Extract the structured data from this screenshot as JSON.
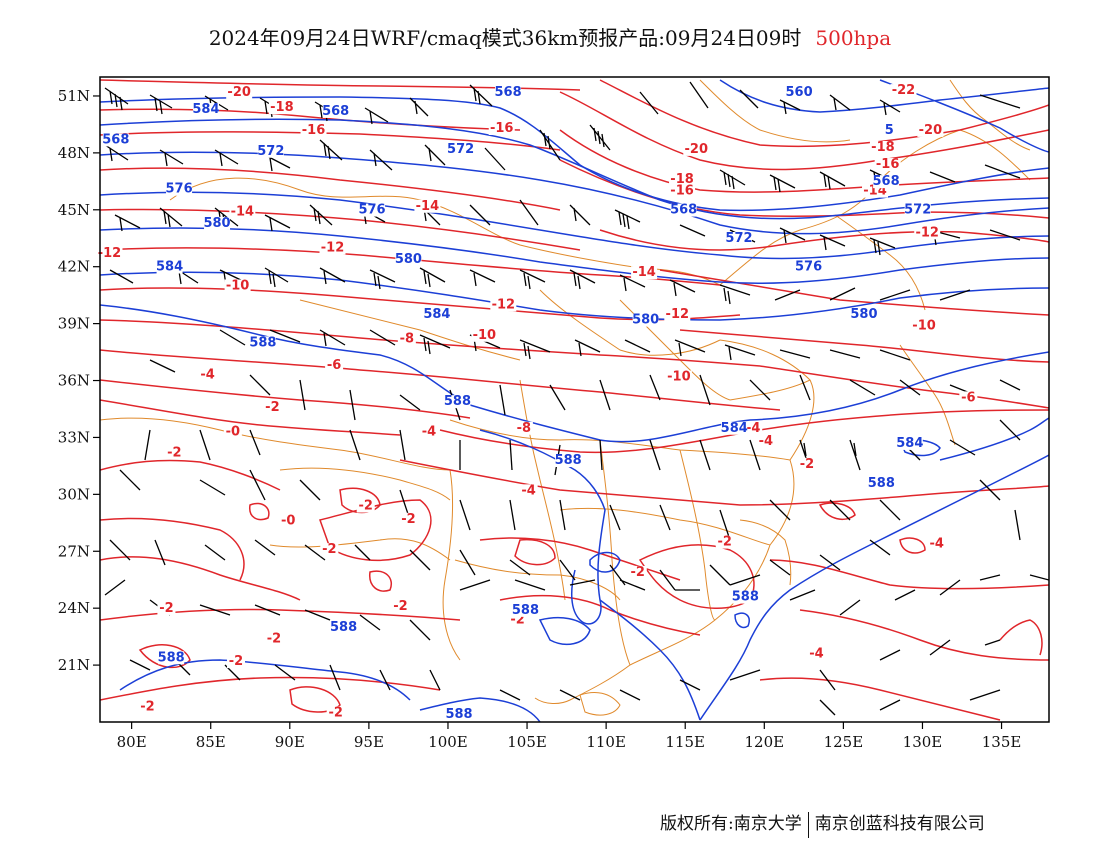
{
  "title": {
    "main": "2024年09月24日WRF/cmaq模式36km预报产品:09月24日09时",
    "level": "500hpa"
  },
  "credit": {
    "left": "版权所有:南京大学",
    "right": "南京创蓝科技有限公司"
  },
  "colors": {
    "temperature": "#e0262b",
    "geopotential": "#1c3fd6",
    "borders": "#e08a2c",
    "wind_barbs": "#000000"
  },
  "map": {
    "lon_range": [
      78,
      138
    ],
    "lat_range": [
      18,
      52
    ],
    "lon_ticks": [
      "80E",
      "85E",
      "90E",
      "95E",
      "100E",
      "105E",
      "110E",
      "115E",
      "120E",
      "125E",
      "130E",
      "135E"
    ],
    "lat_ticks": [
      "51N",
      "48N",
      "45N",
      "42N",
      "39N",
      "36N",
      "33N",
      "30N",
      "27N",
      "24N",
      "21N"
    ],
    "temperature_labels": [
      {
        "text": "-20",
        "lon": 86.8,
        "lat": 51.0
      },
      {
        "text": "-18",
        "lon": 89.5,
        "lon2": 0,
        "lat": 50.2
      },
      {
        "text": "-16",
        "lon": 91.5,
        "lat": 49.0
      },
      {
        "text": "-16",
        "lon": 103.4,
        "lat": 49.1
      },
      {
        "text": "-20",
        "lon": 115.7,
        "lat": 48.0
      },
      {
        "text": "-18",
        "lon": 114.8,
        "lat": 46.4
      },
      {
        "text": "-16",
        "lon": 114.8,
        "lat": 45.8
      },
      {
        "text": "-22",
        "lon": 128.8,
        "lat": 51.1
      },
      {
        "text": "-20",
        "lon": 130.5,
        "lat": 49.0
      },
      {
        "text": "-18",
        "lon": 127.5,
        "lat": 48.1
      },
      {
        "text": "-16",
        "lon": 127.8,
        "lat": 47.2
      },
      {
        "text": "-14",
        "lon": 127.0,
        "lat": 45.8
      },
      {
        "text": "-12",
        "lon": 130.3,
        "lat": 43.6
      },
      {
        "text": "-14",
        "lon": 87.0,
        "lat": 44.7
      },
      {
        "text": "-14",
        "lon": 98.7,
        "lat": 45.0
      },
      {
        "text": "-12",
        "lon": 78.6,
        "lat": 42.5
      },
      {
        "text": "-12",
        "lon": 92.7,
        "lat": 42.8
      },
      {
        "text": "-10",
        "lon": 86.7,
        "lat": 40.8
      },
      {
        "text": "-14",
        "lon": 112.4,
        "lat": 41.5
      },
      {
        "text": "-12",
        "lon": 103.5,
        "lat": 39.8
      },
      {
        "text": "-12",
        "lon": 114.5,
        "lat": 39.3
      },
      {
        "text": "-10",
        "lon": 102.3,
        "lat": 38.2
      },
      {
        "text": "-8",
        "lon": 97.4,
        "lat": 38.0
      },
      {
        "text": "-10",
        "lon": 130.1,
        "lat": 38.7
      },
      {
        "text": "-6",
        "lon": 92.8,
        "lat": 36.6
      },
      {
        "text": "-4",
        "lon": 84.8,
        "lat": 36.1
      },
      {
        "text": "-10",
        "lon": 114.6,
        "lat": 36.0
      },
      {
        "text": "-6",
        "lon": 132.9,
        "lat": 34.9
      },
      {
        "text": "-2",
        "lon": 88.9,
        "lat": 34.4
      },
      {
        "text": "-0",
        "lon": 86.4,
        "lat": 33.1
      },
      {
        "text": "-4",
        "lon": 98.8,
        "lat": 33.1
      },
      {
        "text": "-8",
        "lon": 104.8,
        "lat": 33.3
      },
      {
        "text": "-4",
        "lon": 119.3,
        "lat": 33.3
      },
      {
        "text": "-4",
        "lon": 120.1,
        "lat": 32.6
      },
      {
        "text": "-2",
        "lon": 82.7,
        "lat": 32.0
      },
      {
        "text": "-2",
        "lon": 122.7,
        "lat": 31.4
      },
      {
        "text": "-4",
        "lon": 105.1,
        "lat": 30.0
      },
      {
        "text": "-2",
        "lon": 94.8,
        "lat": 29.2
      },
      {
        "text": "-2",
        "lon": 97.5,
        "lat": 28.5
      },
      {
        "text": "-0",
        "lon": 89.9,
        "lat": 28.4
      },
      {
        "text": "-2",
        "lon": 117.5,
        "lat": 27.3
      },
      {
        "text": "-2",
        "lon": 92.5,
        "lat": 26.9
      },
      {
        "text": "-4",
        "lon": 130.9,
        "lat": 27.2
      },
      {
        "text": "-2",
        "lon": 112.0,
        "lat": 25.7
      },
      {
        "text": "-2",
        "lon": 97.0,
        "lat": 23.9
      },
      {
        "text": "-2",
        "lon": 82.2,
        "lat": 23.8
      },
      {
        "text": "-2",
        "lon": 89.0,
        "lat": 22.2
      },
      {
        "text": "-2",
        "lon": 104.4,
        "lat": 23.2
      },
      {
        "text": "-2",
        "lon": 86.6,
        "lat": 21.0
      },
      {
        "text": "-4",
        "lon": 123.3,
        "lat": 21.4
      },
      {
        "text": "-2",
        "lon": 81.0,
        "lat": 18.6
      },
      {
        "text": "-2",
        "lon": 92.9,
        "lat": 18.3
      }
    ],
    "geopotential_labels": [
      {
        "text": "568",
        "lon": 103.8,
        "lat": 51.0
      },
      {
        "text": "584",
        "lon": 84.7,
        "lat": 50.1
      },
      {
        "text": "568",
        "lon": 92.9,
        "lat": 50.0
      },
      {
        "text": "568",
        "lon": 79.0,
        "lat": 48.5
      },
      {
        "text": "572",
        "lon": 88.8,
        "lat": 47.9
      },
      {
        "text": "572",
        "lon": 100.8,
        "lat": 48.0
      },
      {
        "text": "560",
        "lon": 122.2,
        "lat": 51.0
      },
      {
        "text": "5",
        "lon": 127.9,
        "lat": 49.0
      },
      {
        "text": "568",
        "lon": 127.7,
        "lat": 46.3
      },
      {
        "text": "576",
        "lon": 83.0,
        "lat": 45.9
      },
      {
        "text": "576",
        "lon": 95.2,
        "lat": 44.8
      },
      {
        "text": "568",
        "lon": 114.9,
        "lat": 44.8
      },
      {
        "text": "572",
        "lon": 129.7,
        "lat": 44.8
      },
      {
        "text": "580",
        "lon": 85.4,
        "lat": 44.1
      },
      {
        "text": "572",
        "lon": 118.4,
        "lat": 43.3
      },
      {
        "text": "580",
        "lon": 97.5,
        "lat": 42.2
      },
      {
        "text": "584",
        "lon": 82.4,
        "lat": 41.8
      },
      {
        "text": "576",
        "lon": 122.8,
        "lat": 41.8
      },
      {
        "text": "584",
        "lon": 99.3,
        "lat": 39.3
      },
      {
        "text": "580",
        "lon": 112.5,
        "lat": 39.0
      },
      {
        "text": "580",
        "lon": 126.3,
        "lat": 39.3
      },
      {
        "text": "588",
        "lon": 88.3,
        "lat": 37.8
      },
      {
        "text": "588",
        "lon": 100.6,
        "lat": 34.7
      },
      {
        "text": "584",
        "lon": 118.1,
        "lat": 33.3
      },
      {
        "text": "584",
        "lon": 129.2,
        "lat": 32.5
      },
      {
        "text": "588",
        "lon": 107.6,
        "lat": 31.6
      },
      {
        "text": "588",
        "lon": 127.4,
        "lat": 30.4
      },
      {
        "text": "588",
        "lon": 118.8,
        "lat": 24.4
      },
      {
        "text": "588",
        "lon": 104.9,
        "lat": 23.7
      },
      {
        "text": "588",
        "lon": 93.4,
        "lat": 22.8
      },
      {
        "text": "588",
        "lon": 82.5,
        "lat": 21.2
      },
      {
        "text": "588",
        "lon": 100.7,
        "lat": 18.2
      }
    ]
  }
}
